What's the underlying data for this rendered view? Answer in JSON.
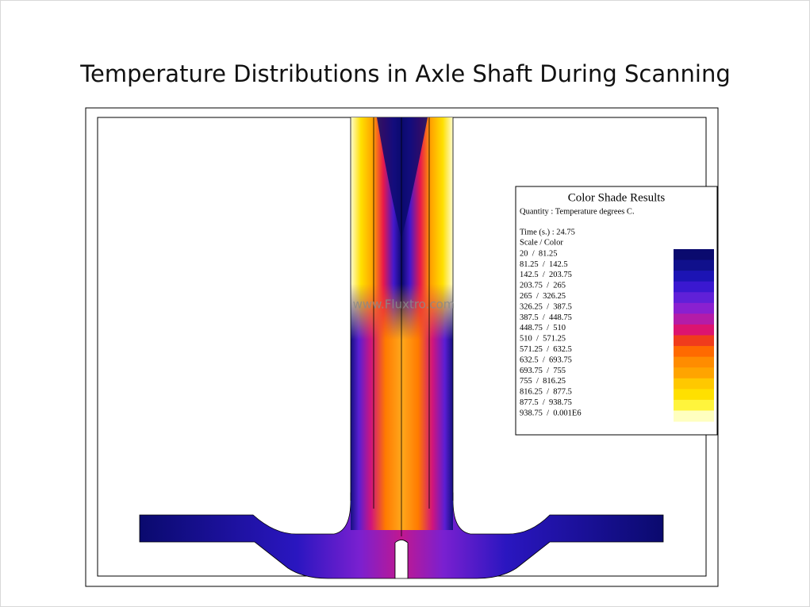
{
  "title": "Temperature Distributions in Axle Shaft During Scanning",
  "watermark": "www.Fluxtro.com",
  "legend": {
    "title": "Color Shade Results",
    "quantity": "Quantity : Temperature degrees C.",
    "time": "Time (s.) : 24.75",
    "scale_header": "Scale / Color",
    "rows": [
      "20  /  81.25",
      "81.25  /  142.5",
      "142.5  /  203.75",
      "203.75  /  265",
      "265  /  326.25",
      "326.25  /  387.5",
      "387.5  /  448.75",
      "448.75  /  510",
      "510  /  571.25",
      "571.25  /  632.5",
      "632.5  /  693.75",
      "693.75  /  755",
      "755  /  816.25",
      "816.25  /  877.5",
      "877.5  /  938.75",
      "938.75  /  0.001E6"
    ],
    "colors": [
      "#0a0a6e",
      "#10108c",
      "#1c14b4",
      "#3a18d0",
      "#6020d8",
      "#8a20d0",
      "#b41ca8",
      "#dc1470",
      "#f03c1c",
      "#ff6a00",
      "#ff8c00",
      "#ffa400",
      "#ffc800",
      "#ffe000",
      "#fff43c",
      "#ffffc0"
    ]
  }
}
